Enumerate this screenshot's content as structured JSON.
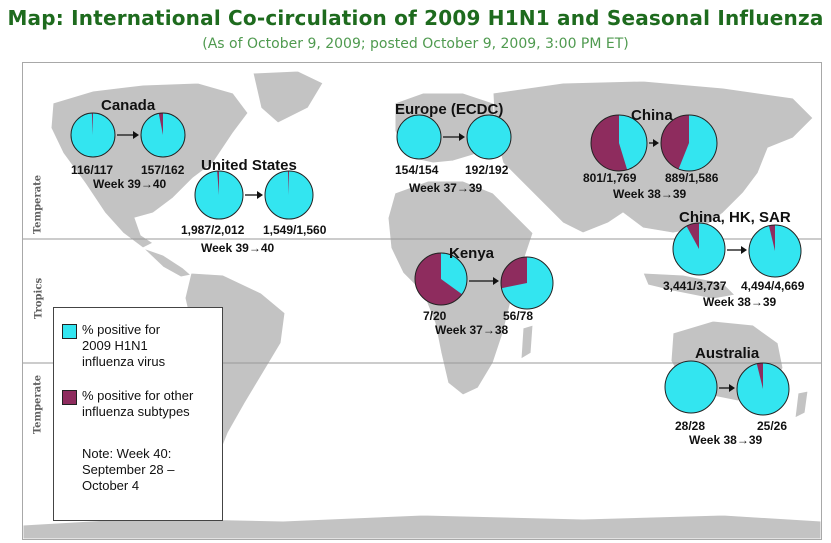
{
  "title": "Map: International Co-circulation of 2009 H1N1 and Seasonal Influenza",
  "subtitle": "(As of October 9, 2009; posted October 9, 2009, 3:00 PM ET)",
  "colors": {
    "h1n1": "#33e5f0",
    "other": "#8e2c5e",
    "land": "#c3c3c3",
    "water": "#ffffff"
  },
  "zones": {
    "north": "Temperate",
    "tropics": "Tropics",
    "south": "Temperate"
  },
  "legend": {
    "h1n1_line1": "% positive for",
    "h1n1_line2": "2009 H1N1",
    "h1n1_line3": "influenza virus",
    "other_line1": "% positive for other",
    "other_line2": "influenza subtypes",
    "note_line1": "Note: Week 40:",
    "note_line2": "September 28 –",
    "note_line3": "October 4"
  },
  "regions": [
    {
      "name": "Canada",
      "week": "Week 39→40",
      "first": {
        "positive": 116,
        "total": 117,
        "label": "116/117"
      },
      "second": {
        "positive": 157,
        "total": 162,
        "label": "157/162"
      }
    },
    {
      "name": "United States",
      "week": "Week 39→40",
      "first": {
        "positive": 1987,
        "total": 2012,
        "label": "1,987/2,012"
      },
      "second": {
        "positive": 1549,
        "total": 1560,
        "label": "1,549/1,560"
      }
    },
    {
      "name": "Europe (ECDC)",
      "week": "Week 37→39",
      "first": {
        "positive": 154,
        "total": 154,
        "label": "154/154"
      },
      "second": {
        "positive": 192,
        "total": 192,
        "label": "192/192"
      }
    },
    {
      "name": "China",
      "week": "Week 38→39",
      "first": {
        "positive": 801,
        "total": 1769,
        "label": "801/1,769"
      },
      "second": {
        "positive": 889,
        "total": 1586,
        "label": "889/1,586"
      }
    },
    {
      "name": "Kenya",
      "week": "Week 37→38",
      "first": {
        "positive": 7,
        "total": 20,
        "label": "7/20"
      },
      "second": {
        "positive": 56,
        "total": 78,
        "label": "56/78"
      }
    },
    {
      "name": "China, HK, SAR",
      "week": "Week 38→39",
      "first": {
        "positive": 3441,
        "total": 3737,
        "label": "3,441/3,737"
      },
      "second": {
        "positive": 4494,
        "total": 4669,
        "label": "4,494/4,669"
      }
    },
    {
      "name": "Australia",
      "week": "Week 38→39",
      "first": {
        "positive": 28,
        "total": 28,
        "label": "28/28"
      },
      "second": {
        "positive": 25,
        "total": 26,
        "label": "25/26"
      }
    }
  ]
}
